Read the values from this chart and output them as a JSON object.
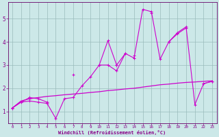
{
  "xlabel": "Windchill (Refroidissement éolien,°C)",
  "x_values": [
    0,
    1,
    2,
    3,
    4,
    5,
    6,
    7,
    8,
    9,
    10,
    11,
    12,
    13,
    14,
    15,
    16,
    17,
    18,
    19,
    20,
    21,
    22,
    23
  ],
  "line1_y": [
    1.15,
    1.4,
    1.45,
    1.4,
    1.35,
    0.7,
    1.55,
    1.6,
    2.1,
    2.5,
    3.0,
    3.0,
    2.75,
    3.5,
    3.3,
    5.4,
    5.3,
    3.25,
    4.0,
    4.35,
    4.6,
    1.3,
    2.2,
    2.3
  ],
  "line2_y": [
    1.15,
    1.4,
    1.6,
    1.55,
    1.4,
    null,
    null,
    2.6,
    null,
    null,
    3.0,
    4.05,
    3.0,
    null,
    3.4,
    null,
    null,
    null,
    4.0,
    4.4,
    4.65,
    null,
    null,
    null
  ],
  "line3_y": [
    1.15,
    null,
    1.55,
    null,
    null,
    null,
    null,
    null,
    null,
    null,
    null,
    null,
    3.0,
    3.5,
    null,
    null,
    5.25,
    null,
    null,
    null,
    null,
    null,
    2.2,
    2.3
  ],
  "line4_y": [
    1.15,
    1.45,
    1.55,
    1.6,
    1.65,
    1.68,
    1.72,
    1.75,
    1.78,
    1.82,
    1.85,
    1.9,
    1.93,
    1.97,
    2.0,
    2.05,
    2.1,
    2.15,
    2.18,
    2.22,
    2.25,
    2.27,
    2.3,
    2.32
  ],
  "bg_color": "#cce8e8",
  "line_color": "#cc00cc",
  "grid_color": "#99bbbb",
  "tick_color": "#880088",
  "spine_color": "#660066",
  "ylim": [
    0.5,
    5.7
  ],
  "xlim": [
    -0.5,
    23.5
  ]
}
